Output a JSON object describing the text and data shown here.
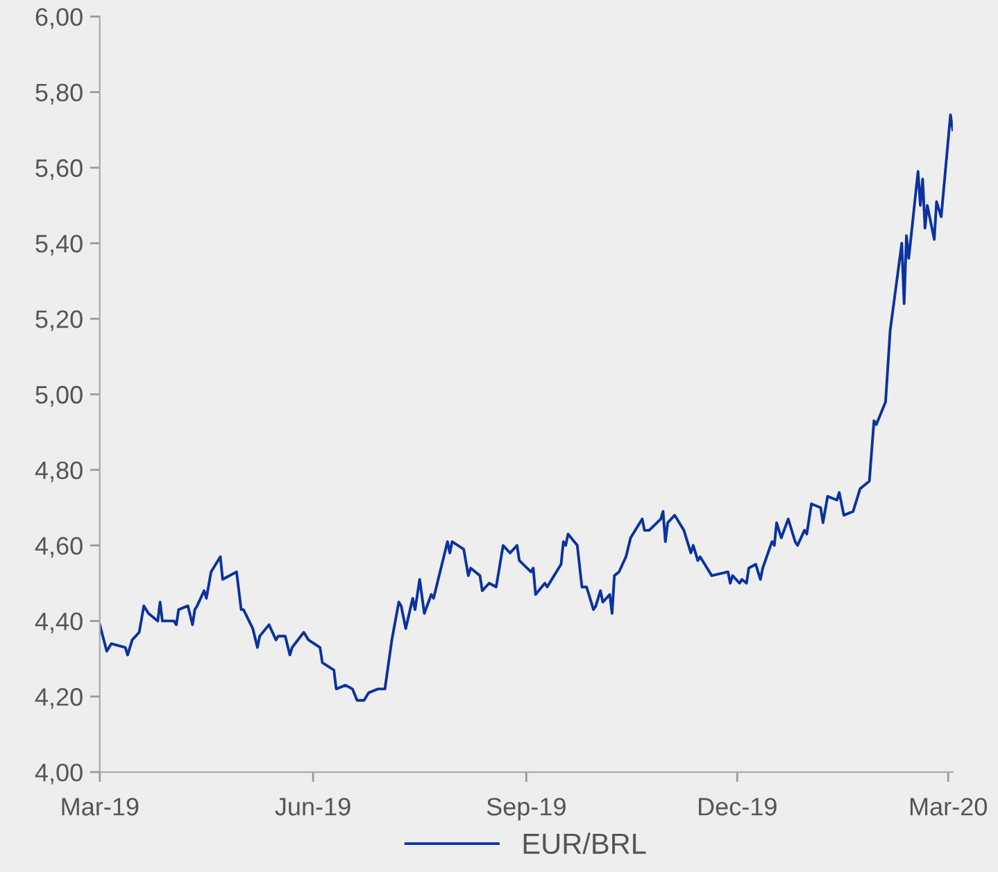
{
  "chart_data": {
    "type": "line",
    "x": [
      "2019-03-01",
      "2019-03-04",
      "2019-03-06",
      "2019-03-12",
      "2019-03-13",
      "2019-03-15",
      "2019-03-18",
      "2019-03-20",
      "2019-03-22",
      "2019-03-26",
      "2019-03-27",
      "2019-03-28",
      "2019-04-02",
      "2019-04-03",
      "2019-04-04",
      "2019-04-08",
      "2019-04-10",
      "2019-04-11",
      "2019-04-12",
      "2019-04-15",
      "2019-04-16",
      "2019-04-18",
      "2019-04-22",
      "2019-04-23",
      "2019-04-29",
      "2019-05-01",
      "2019-05-02",
      "2019-05-06",
      "2019-05-08",
      "2019-05-09",
      "2019-05-13",
      "2019-05-16",
      "2019-05-17",
      "2019-05-20",
      "2019-05-22",
      "2019-05-23",
      "2019-05-28",
      "2019-05-30",
      "2019-06-04",
      "2019-06-05",
      "2019-06-10",
      "2019-06-11",
      "2019-06-15",
      "2019-06-18",
      "2019-06-20",
      "2019-06-23",
      "2019-06-25",
      "2019-06-29",
      "2019-07-02",
      "2019-07-05",
      "2019-07-08",
      "2019-07-09",
      "2019-07-11",
      "2019-07-14",
      "2019-07-15",
      "2019-07-17",
      "2019-07-19",
      "2019-07-22",
      "2019-07-23",
      "2019-07-25",
      "2019-07-29",
      "2019-07-30",
      "2019-07-31",
      "2019-08-05",
      "2019-08-07",
      "2019-08-08",
      "2019-08-12",
      "2019-08-13",
      "2019-08-16",
      "2019-08-19",
      "2019-08-22",
      "2019-08-25",
      "2019-08-28",
      "2019-08-29",
      "2019-09-03",
      "2019-09-04",
      "2019-09-05",
      "2019-09-09",
      "2019-09-10",
      "2019-09-13",
      "2019-09-16",
      "2019-09-17",
      "2019-09-18",
      "2019-09-19",
      "2019-09-23",
      "2019-09-25",
      "2019-09-27",
      "2019-09-30",
      "2019-10-01",
      "2019-10-03",
      "2019-10-04",
      "2019-10-07",
      "2019-10-08",
      "2019-10-09",
      "2019-10-11",
      "2019-10-14",
      "2019-10-16",
      "2019-10-21",
      "2019-10-22",
      "2019-10-24",
      "2019-10-29",
      "2019-10-30",
      "2019-10-31",
      "2019-11-01",
      "2019-11-04",
      "2019-11-08",
      "2019-11-11",
      "2019-11-12",
      "2019-11-14",
      "2019-11-15",
      "2019-11-18",
      "2019-11-20",
      "2019-11-27",
      "2019-11-28",
      "2019-11-29",
      "2019-12-02",
      "2019-12-03",
      "2019-12-05",
      "2019-12-06",
      "2019-12-09",
      "2019-12-11",
      "2019-12-12",
      "2019-12-16",
      "2019-12-17",
      "2019-12-18",
      "2019-12-20",
      "2019-12-23",
      "2019-12-26",
      "2019-12-27",
      "2019-12-30",
      "2019-12-31",
      "2020-01-02",
      "2020-01-06",
      "2020-01-07",
      "2020-01-09",
      "2020-01-13",
      "2020-01-14",
      "2020-01-16",
      "2020-01-20",
      "2020-01-23",
      "2020-01-27",
      "2020-01-29",
      "2020-01-30",
      "2020-02-03",
      "2020-02-05",
      "2020-02-10",
      "2020-02-11",
      "2020-02-12",
      "2020-02-13",
      "2020-02-17",
      "2020-02-18",
      "2020-02-19",
      "2020-02-20",
      "2020-02-21",
      "2020-02-24",
      "2020-02-25",
      "2020-02-27",
      "2020-03-02",
      "2020-03-03"
    ],
    "series": [
      {
        "name": "EUR/BRL",
        "color": "#0a32a0",
        "values": [
          4.39,
          4.32,
          4.34,
          4.33,
          4.31,
          4.35,
          4.37,
          4.44,
          4.42,
          4.4,
          4.45,
          4.4,
          4.4,
          4.39,
          4.43,
          4.44,
          4.39,
          4.43,
          4.44,
          4.48,
          4.46,
          4.53,
          4.57,
          4.51,
          4.53,
          4.43,
          4.43,
          4.38,
          4.33,
          4.36,
          4.39,
          4.35,
          4.36,
          4.36,
          4.31,
          4.33,
          4.37,
          4.35,
          4.33,
          4.29,
          4.27,
          4.22,
          4.23,
          4.22,
          4.19,
          4.19,
          4.21,
          4.22,
          4.22,
          4.35,
          4.45,
          4.44,
          4.38,
          4.46,
          4.43,
          4.51,
          4.42,
          4.47,
          4.46,
          4.51,
          4.61,
          4.58,
          4.61,
          4.59,
          4.52,
          4.54,
          4.52,
          4.48,
          4.5,
          4.49,
          4.6,
          4.58,
          4.6,
          4.56,
          4.53,
          4.54,
          4.47,
          4.5,
          4.49,
          4.52,
          4.55,
          4.61,
          4.6,
          4.63,
          4.6,
          4.49,
          4.49,
          4.43,
          4.44,
          4.48,
          4.45,
          4.47,
          4.42,
          4.52,
          4.53,
          4.57,
          4.62,
          4.67,
          4.64,
          4.64,
          4.67,
          4.69,
          4.61,
          4.66,
          4.68,
          4.64,
          4.58,
          4.6,
          4.56,
          4.57,
          4.54,
          4.52,
          4.53,
          4.5,
          4.52,
          4.5,
          4.51,
          4.5,
          4.54,
          4.55,
          4.51,
          4.54,
          4.61,
          4.6,
          4.66,
          4.62,
          4.67,
          4.61,
          4.6,
          4.64,
          4.63,
          4.71,
          4.7,
          4.66,
          4.73,
          4.72,
          4.74,
          4.68,
          4.69,
          4.75,
          4.77,
          4.93,
          4.92,
          4.98,
          5.17,
          5.4,
          5.24,
          5.42,
          5.36,
          5.59,
          5.5,
          5.57,
          5.44,
          5.5,
          5.41,
          5.51,
          5.47,
          5.74,
          5.7
        ]
      }
    ],
    "xlim": [
      "2019-03-01",
      "2020-03-03"
    ],
    "xticks": [
      {
        "value": "2019-03-01",
        "label": "Mar-19"
      },
      {
        "value": "2019-06-01",
        "label": "Jun-19"
      },
      {
        "value": "2019-09-01",
        "label": "Sep-19"
      },
      {
        "value": "2019-12-01",
        "label": "Dec-19"
      },
      {
        "value": "2020-03-01",
        "label": "Mar-20"
      }
    ],
    "ylim": [
      4,
      6
    ],
    "yticks": [
      {
        "value": 4,
        "label": "4,00"
      },
      {
        "value": 4.2,
        "label": "4,20"
      },
      {
        "value": 4.4,
        "label": "4,40"
      },
      {
        "value": 4.6,
        "label": "4,60"
      },
      {
        "value": 4.8,
        "label": "4,80"
      },
      {
        "value": 5,
        "label": "5,00"
      },
      {
        "value": 5.2,
        "label": "5,20"
      },
      {
        "value": 5.4,
        "label": "5,40"
      },
      {
        "value": 5.6,
        "label": "5,60"
      },
      {
        "value": 5.8,
        "label": "5,80"
      },
      {
        "value": 6,
        "label": "6,00"
      }
    ],
    "legend": "bottom",
    "grid": false
  }
}
